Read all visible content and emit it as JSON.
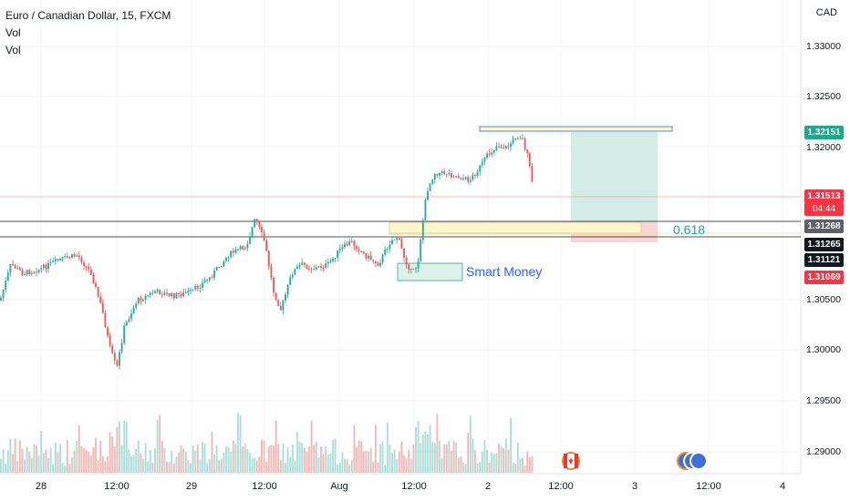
{
  "header": {
    "symbol_line": "Euro / Canadian Dollar, 15, FXCM",
    "indicator_1": "Vol",
    "indicator_2": "Vol"
  },
  "currency": "CAD",
  "price_axis": {
    "ticks": [
      "1.33000",
      "1.32500",
      "1.32000",
      "1.30500",
      "1.30000",
      "1.29500",
      "1.29000"
    ]
  },
  "time_axis": {
    "ticks": [
      "28",
      "12:00",
      "29",
      "12:00",
      "Aug",
      "12:00",
      "2",
      "12:00",
      "3",
      "12:00",
      "4"
    ]
  },
  "price_labels": {
    "high_line": "1.32151",
    "last_price": "1.31513",
    "countdown": "04:44",
    "line_upper": "1.31268",
    "line_lower": "1.31265",
    "line_mid": "1.31121",
    "low": "1.31069"
  },
  "annotations": {
    "fib_label": "0.618",
    "smart_money_label": "Smart Money"
  },
  "colors": {
    "bull": "#26a69a",
    "bear": "#ef5350",
    "tp_zone": "#d3ece6",
    "sl_zone": "#f9d5d3",
    "fib_zone": "#fdf6cc",
    "green_label": "#22a68a",
    "red_label": "#f23645",
    "dark_label": "#131722",
    "smart_money_text": "#2962ff",
    "fib_text": "#22a68a"
  },
  "icons": {
    "event_canada": "canada-flag-icon",
    "event_multi": "event-stack-icon"
  }
}
